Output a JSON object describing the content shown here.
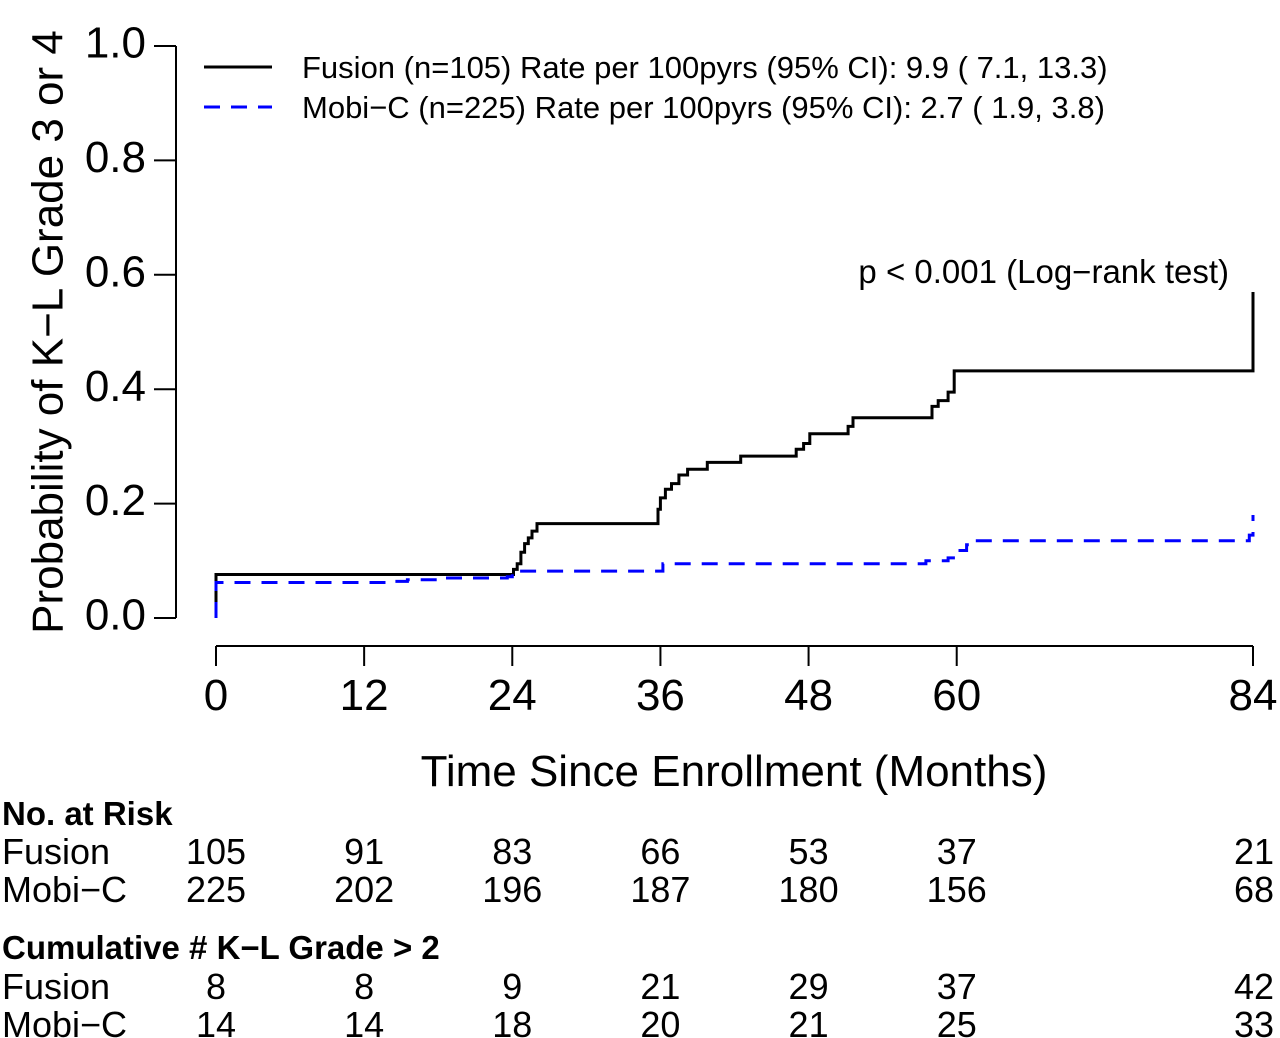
{
  "chart_data": {
    "type": "line",
    "title": "",
    "xlabel": "Time Since Enrollment (Months)",
    "ylabel": "Probability of K−L Grade 3 or 4",
    "xlim": [
      0,
      84
    ],
    "ylim": [
      0,
      1
    ],
    "x_ticks": [
      0,
      12,
      24,
      36,
      48,
      60,
      84
    ],
    "y_ticks": [
      0.0,
      0.2,
      0.4,
      0.6,
      0.8,
      1.0
    ],
    "y_tick_labels": [
      "0.0",
      "0.2",
      "0.4",
      "0.6",
      "0.8",
      "1.0"
    ],
    "grid": false,
    "legend_position": "top-left",
    "annotation": "p < 0.001 (Log−rank test)",
    "series": [
      {
        "name": "Fusion (n=105) Rate per 100pyrs (95% CI):  9.9 ( 7.1, 13.3)",
        "color": "#000000",
        "style": "solid",
        "steps": [
          [
            0,
            0.0
          ],
          [
            0,
            0.076
          ],
          [
            23.8,
            0.076
          ],
          [
            24.1,
            0.085
          ],
          [
            24.4,
            0.095
          ],
          [
            24.7,
            0.115
          ],
          [
            25.0,
            0.13
          ],
          [
            25.3,
            0.14
          ],
          [
            25.6,
            0.152
          ],
          [
            26.0,
            0.165
          ],
          [
            35.6,
            0.165
          ],
          [
            35.8,
            0.19
          ],
          [
            36.0,
            0.21
          ],
          [
            36.4,
            0.225
          ],
          [
            36.9,
            0.235
          ],
          [
            37.5,
            0.25
          ],
          [
            38.2,
            0.26
          ],
          [
            39.8,
            0.272
          ],
          [
            42.5,
            0.283
          ],
          [
            47.0,
            0.295
          ],
          [
            47.6,
            0.305
          ],
          [
            48.1,
            0.322
          ],
          [
            51.2,
            0.335
          ],
          [
            51.6,
            0.35
          ],
          [
            58.0,
            0.37
          ],
          [
            58.5,
            0.38
          ],
          [
            59.3,
            0.395
          ],
          [
            59.8,
            0.432
          ],
          [
            84.0,
            0.432
          ],
          [
            84.0,
            0.57
          ]
        ]
      },
      {
        "name": "Mobi−C (n=225) Rate per 100pyrs (95% CI):  2.7 ( 1.9,  3.8)",
        "color": "#0000ff",
        "style": "dashed",
        "steps": [
          [
            0,
            0.0
          ],
          [
            0,
            0.062
          ],
          [
            13.5,
            0.062
          ],
          [
            14.0,
            0.064
          ],
          [
            15.5,
            0.067
          ],
          [
            18.0,
            0.07
          ],
          [
            23.6,
            0.072
          ],
          [
            24.0,
            0.082
          ],
          [
            35.8,
            0.082
          ],
          [
            36.2,
            0.095
          ],
          [
            56.8,
            0.095
          ],
          [
            57.5,
            0.1
          ],
          [
            59.3,
            0.105
          ],
          [
            60.0,
            0.118
          ],
          [
            60.8,
            0.128
          ],
          [
            61.3,
            0.135
          ],
          [
            83.4,
            0.135
          ],
          [
            83.7,
            0.145
          ],
          [
            84.0,
            0.152
          ],
          [
            84.0,
            0.18
          ]
        ]
      }
    ]
  },
  "risk_table": {
    "heading": "No. at Risk",
    "rows": [
      {
        "label": "Fusion",
        "values": [
          "105",
          "91",
          "83",
          "66",
          "53",
          "37",
          "21"
        ]
      },
      {
        "label": "Mobi−C",
        "values": [
          "225",
          "202",
          "196",
          "187",
          "180",
          "156",
          "68"
        ]
      }
    ]
  },
  "events_table": {
    "heading": "Cumulative # K−L Grade > 2",
    "rows": [
      {
        "label": "Fusion",
        "values": [
          "8",
          "8",
          "9",
          "21",
          "29",
          "37",
          "42"
        ]
      },
      {
        "label": "Mobi−C",
        "values": [
          "14",
          "14",
          "18",
          "20",
          "21",
          "25",
          "33"
        ]
      }
    ]
  }
}
